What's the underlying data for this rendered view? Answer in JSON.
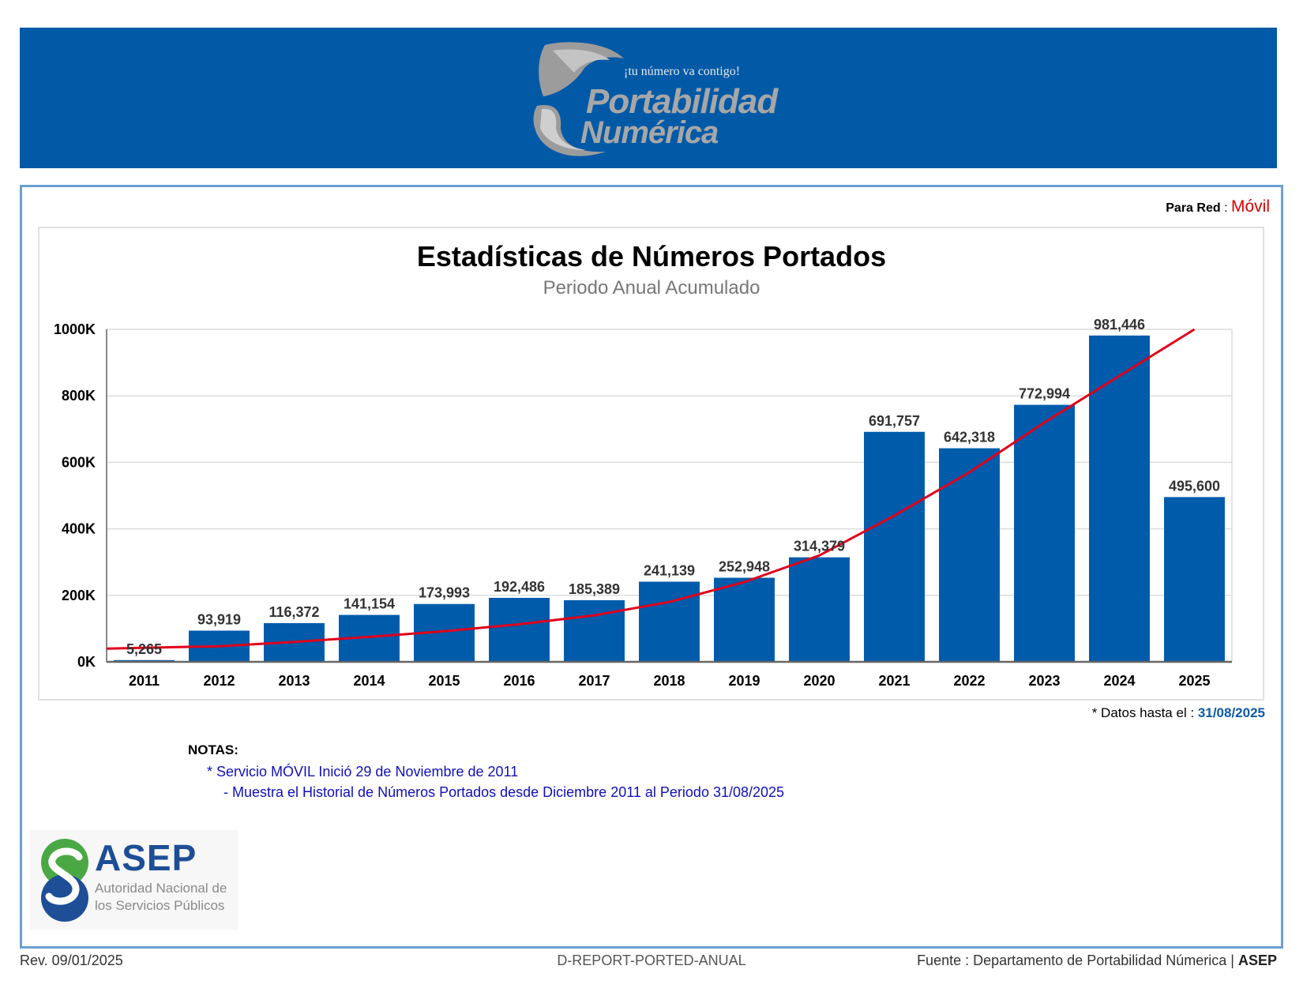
{
  "header": {
    "tagline": "¡tu número va contigo!",
    "brand_line1": "Portabilidad",
    "brand_line2": "Numérica",
    "banner_color": "#025aa7"
  },
  "network": {
    "label": "Para Red",
    "separator": ":",
    "value": "Móvil"
  },
  "chart_data": {
    "type": "bar",
    "title": "Estadísticas de Números Portados",
    "subtitle": "Periodo Anual Acumulado",
    "categories": [
      "2011",
      "2012",
      "2013",
      "2014",
      "2015",
      "2016",
      "2017",
      "2018",
      "2019",
      "2020",
      "2021",
      "2022",
      "2023",
      "2024",
      "2025"
    ],
    "series": [
      {
        "values": [
          5265,
          93919,
          116372,
          141154,
          173993,
          192486,
          185389,
          241139,
          252948,
          314379,
          691757,
          642318,
          772994,
          981446,
          495600
        ],
        "labels": [
          "5,265",
          "93,919",
          "116,372",
          "141,154",
          "173,993",
          "192,486",
          "185,389",
          "241,139",
          "252,948",
          "314,379",
          "691,757",
          "642,318",
          "772,994",
          "981,446",
          "495,600"
        ],
        "color": "#005bab"
      }
    ],
    "trendline": {
      "type": "exponential",
      "color": "#e0001a",
      "values": [
        40000,
        47000,
        60000,
        75000,
        92000,
        113000,
        140000,
        180000,
        240000,
        320000,
        440000,
        570000,
        720000,
        860000,
        1000000
      ]
    },
    "ylim": [
      0,
      1000000
    ],
    "yticks": [
      0,
      200000,
      400000,
      600000,
      800000,
      1000000
    ],
    "ytick_labels": [
      "0K",
      "200K",
      "400K",
      "600K",
      "800K",
      "1000K"
    ],
    "grid": true,
    "xlabel": "",
    "ylabel": ""
  },
  "data_date": {
    "label": "* Datos hasta el :",
    "value": "31/08/2025"
  },
  "notes": {
    "title": "NOTAS:",
    "line1": "* Servicio MÓVIL Inició 29 de Noviembre de 2011",
    "line2": "- Muestra el Historial de Números Portados desde Diciembre 2011 al Periodo 31/08/2025"
  },
  "asep": {
    "name": "ASEP",
    "sub1": "Autoridad Nacional de",
    "sub2": "los Servicios Públicos"
  },
  "footer": {
    "rev": "Rev. 09/01/2025",
    "code": "D-REPORT-PORTED-ANUAL",
    "source": "Fuente : Departamento de Portabilidad Númerica |",
    "source_org": "ASEP"
  }
}
